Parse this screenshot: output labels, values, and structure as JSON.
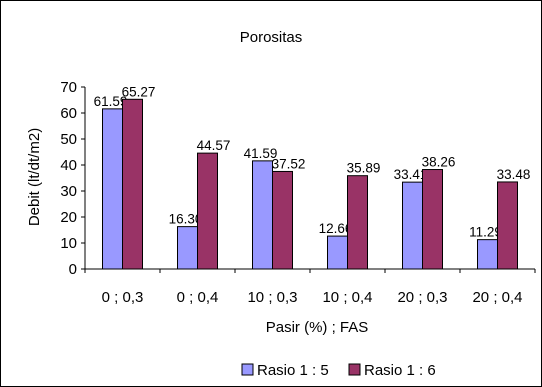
{
  "chart_data": {
    "type": "bar",
    "title": "Porositas",
    "xlabel": "Pasir (%) ; FAS",
    "ylabel": "Debit (lt/dt/m2)",
    "ylim": [
      0,
      70
    ],
    "yticks": [
      "0",
      "10",
      "20",
      "30",
      "40",
      "50",
      "60",
      "70"
    ],
    "categories": [
      "0 ; 0,3",
      "0 ; 0,4",
      "10 ; 0,3",
      "10 ; 0,4",
      "20 ; 0,3",
      "20 ; 0,4"
    ],
    "grid": false,
    "legend_position": "bottom",
    "series": [
      {
        "name": "Rasio 1 : 5",
        "color": "#9999ff",
        "values": [
          61.59,
          16.3,
          41.59,
          12.66,
          33.41,
          11.29
        ],
        "labels": [
          "61.59",
          "16.30",
          "41.59",
          "12.66",
          "33.41",
          "11.29"
        ]
      },
      {
        "name": "Rasio 1 : 6",
        "color": "#993366",
        "values": [
          65.27,
          44.57,
          37.52,
          35.89,
          38.26,
          33.48
        ],
        "labels": [
          "65.27",
          "44.57",
          "37.52",
          "35.89",
          "38.26",
          "33.48"
        ]
      }
    ]
  }
}
